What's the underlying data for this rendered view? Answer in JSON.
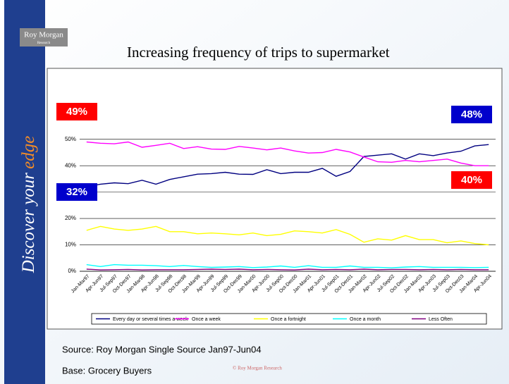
{
  "slide": {
    "logo": "Roy Morgan",
    "logo_sub": "Research",
    "sidebar": "Discover your",
    "sidebar_accent": "edge",
    "source": "Source: Roy Morgan Single Source Jan97-Jun04",
    "base": "Base: Grocery Buyers",
    "copyright": "© Roy Morgan Research"
  },
  "chart_data": {
    "type": "line",
    "title": "Increasing frequency of trips to supermarket",
    "categories": [
      "Jan-Mar97",
      "Apr-Jun97",
      "Jul-Sep97",
      "Oct-Dec97",
      "Jan-Mar98",
      "Apr-Jun98",
      "Jul-Sep98",
      "Oct-Dec98",
      "Jan-Mar99",
      "Apr-Jun99",
      "Jul-Sep99",
      "Oct-Dec99",
      "Jan-Mar00",
      "Apr-Jun00",
      "Jul-Sep00",
      "Oct-Dec00",
      "Jan-Mar01",
      "Apr-Jun01",
      "Jul-Sep01",
      "Oct-Dec01",
      "Jan-Mar02",
      "Apr-Jun02",
      "Jul-Sep02",
      "Oct-Dec02",
      "Jan-Mar03",
      "Apr-Jun03",
      "Jul-Sep03",
      "Oct-Dec03",
      "Jan-Mar04",
      "Apr-Jun04"
    ],
    "series": [
      {
        "name": "Every day or several times a week",
        "color": "#000080",
        "values": [
          32,
          33,
          33.5,
          33.2,
          34.5,
          33,
          34.8,
          35.8,
          36.8,
          37,
          37.5,
          36.8,
          36.7,
          38.5,
          37,
          37.5,
          37.5,
          39,
          36,
          37.8,
          43.5,
          44,
          44.5,
          42.5,
          44.5,
          43.8,
          44.8,
          45.5,
          47.5,
          48
        ]
      },
      {
        "name": "Once a week",
        "color": "#ff00ff",
        "values": [
          49,
          48.5,
          48.3,
          49,
          47,
          47.7,
          48.5,
          46.5,
          47.2,
          46.3,
          46.2,
          47.3,
          46.7,
          46,
          46.7,
          45.6,
          44.8,
          45,
          46.2,
          45.2,
          43.3,
          41.5,
          41.3,
          42,
          41.5,
          42,
          42.5,
          41,
          40,
          40
        ]
      },
      {
        "name": "Once a fortnight",
        "color": "#ffff00",
        "values": [
          15.5,
          17,
          16,
          15.5,
          16,
          17,
          15,
          15,
          14.2,
          14.5,
          14.2,
          13.8,
          14.5,
          13.5,
          14,
          15.3,
          15,
          14.5,
          15.8,
          14,
          11,
          12.3,
          11.8,
          13.5,
          12,
          12,
          10.8,
          11.5,
          10.5,
          10
        ]
      },
      {
        "name": "Once a month",
        "color": "#00ffff",
        "values": [
          2.5,
          1.8,
          2.5,
          2.3,
          2.3,
          2.1,
          1.8,
          2.2,
          1.8,
          1.5,
          1.6,
          1.8,
          1.4,
          1.6,
          2,
          1.5,
          2.1,
          1.5,
          1.5,
          2,
          1.5,
          1.5,
          1.3,
          1.6,
          1.8,
          1.5,
          1.5,
          1.5,
          1.4,
          1.5
        ]
      },
      {
        "name": "Less Often",
        "color": "#800080",
        "values": [
          0.8,
          0.5,
          0.6,
          0.7,
          0.5,
          0.6,
          0.6,
          0.6,
          0.7,
          0.8,
          0.7,
          0.8,
          0.6,
          0.7,
          0.6,
          0.5,
          0.8,
          0.6,
          0.7,
          0.6,
          0.8,
          0.6,
          0.7,
          0.7,
          0.6,
          0.7,
          0.6,
          0.7,
          0.6,
          0.6
        ]
      }
    ],
    "ylim": [
      0,
      55
    ],
    "yticks": [
      {
        "value": 0,
        "label": "0%"
      },
      {
        "value": 10,
        "label": "10%"
      },
      {
        "value": 20,
        "label": "20%"
      },
      {
        "value": 30,
        "label": "30%"
      },
      {
        "value": 40,
        "label": "40%"
      },
      {
        "value": 50,
        "label": "50%"
      }
    ],
    "grid": true,
    "annotations": [
      {
        "text": "49%",
        "color": "#ff0000"
      },
      {
        "text": "48%",
        "color": "#0000cc"
      },
      {
        "text": "32%",
        "color": "#0000cc"
      },
      {
        "text": "40%",
        "color": "#ff0000"
      }
    ]
  }
}
